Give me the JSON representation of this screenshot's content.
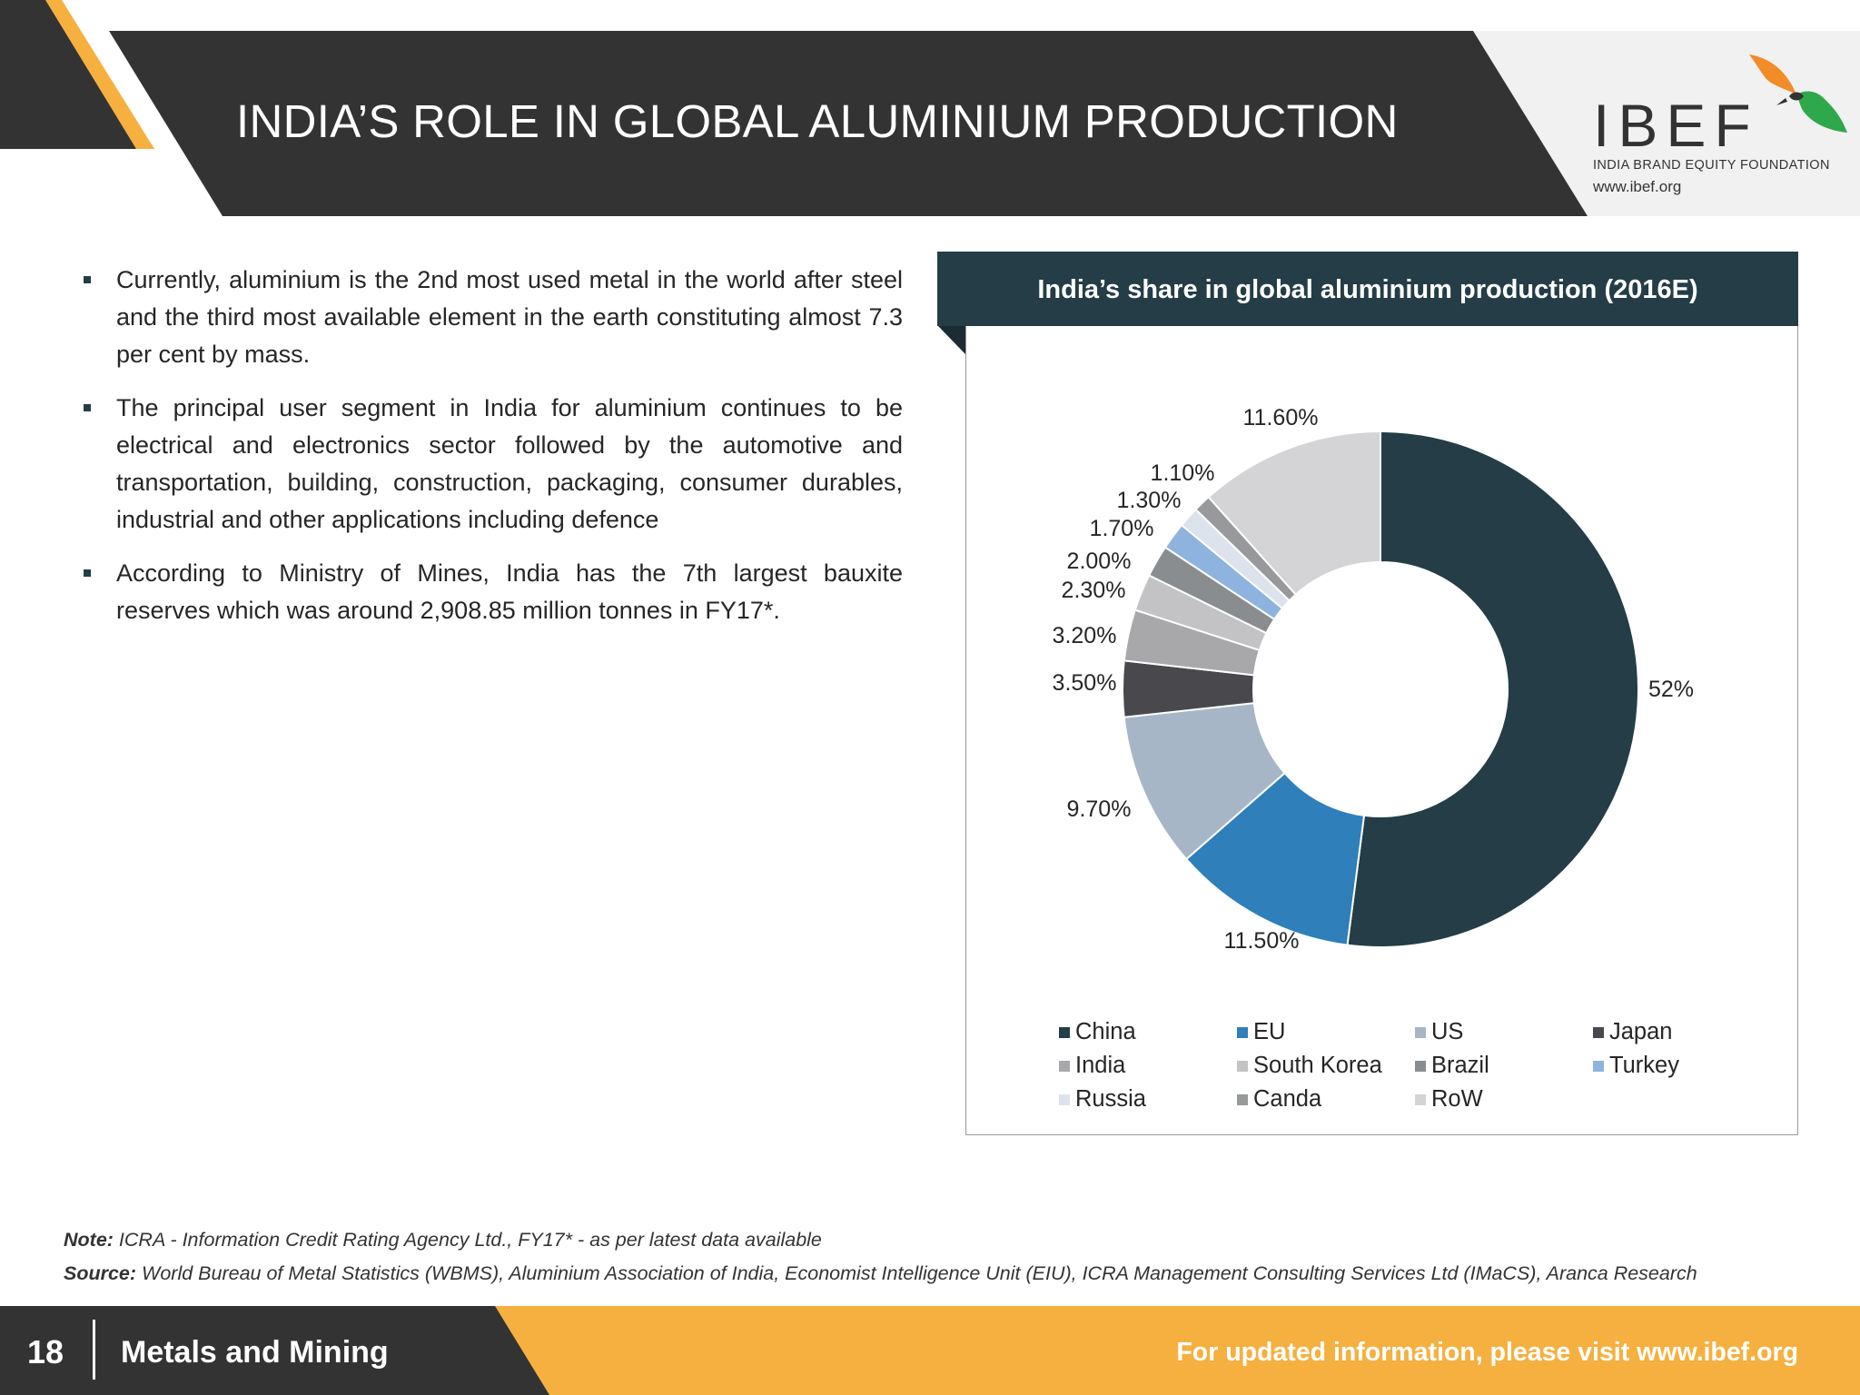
{
  "header": {
    "title": "INDIA’S ROLE IN GLOBAL ALUMINIUM PRODUCTION"
  },
  "logo": {
    "wordmark": "IBEF",
    "subtitle": "INDIA BRAND EQUITY FOUNDATION",
    "url": "www.ibef.org"
  },
  "bullets": [
    "Currently, aluminium is the 2nd most used metal in the world after steel and the third most available element in the earth constituting almost 7.3 per cent by mass.",
    "The principal user segment in India for aluminium continues to be electrical and electronics sector followed by the automotive and transportation, building, construction, packaging, consumer durables, industrial and other applications including defence",
    "According to Ministry of Mines, India has the 7th largest bauxite reserves which was around 2,908.85 million tonnes in FY17*."
  ],
  "chart_data": {
    "type": "pie",
    "variant": "donut",
    "title": "India’s share in global aluminium production (2016E)",
    "legend_position": "bottom",
    "slices": [
      {
        "name": "China",
        "value": 52,
        "label": "52%",
        "color": "#243d46"
      },
      {
        "name": "EU",
        "value": 11.5,
        "label": "11.50%",
        "color": "#2e7fba"
      },
      {
        "name": "US",
        "value": 9.7,
        "label": "9.70%",
        "color": "#a7b6c7"
      },
      {
        "name": "Japan",
        "value": 3.5,
        "label": "3.50%",
        "color": "#48484d"
      },
      {
        "name": "India",
        "value": 3.2,
        "label": "3.20%",
        "color": "#a8a8ab"
      },
      {
        "name": "South Korea",
        "value": 2.3,
        "label": "2.30%",
        "color": "#c3c3c5"
      },
      {
        "name": "Brazil",
        "value": 2.0,
        "label": "2.00%",
        "color": "#8a8d8f"
      },
      {
        "name": "Turkey",
        "value": 1.7,
        "label": "1.70%",
        "color": "#8fb3df"
      },
      {
        "name": "Russia",
        "value": 1.3,
        "label": "1.30%",
        "color": "#dde3ec"
      },
      {
        "name": "Canda",
        "value": 1.1,
        "label": "1.10%",
        "color": "#98999b"
      },
      {
        "name": "RoW",
        "value": 11.6,
        "label": "11.60%",
        "color": "#d4d4d6"
      }
    ]
  },
  "note": {
    "label": "Note:",
    "text": " ICRA - Information Credit Rating Agency Ltd., FY17* - as per latest data available"
  },
  "source": {
    "label": "Source:",
    "text": " World Bureau of Metal Statistics (WBMS), Aluminium Association of India, Economist Intelligence Unit (EIU), ICRA Management Consulting Services Ltd (IMaCS), Aranca Research"
  },
  "footer": {
    "page_number": "18",
    "section": "Metals and Mining",
    "cta": "For updated information, please visit www.ibef.org"
  },
  "colors": {
    "header_dark": "#333333",
    "accent_orange": "#f5b040",
    "chart_header": "#243d46"
  }
}
